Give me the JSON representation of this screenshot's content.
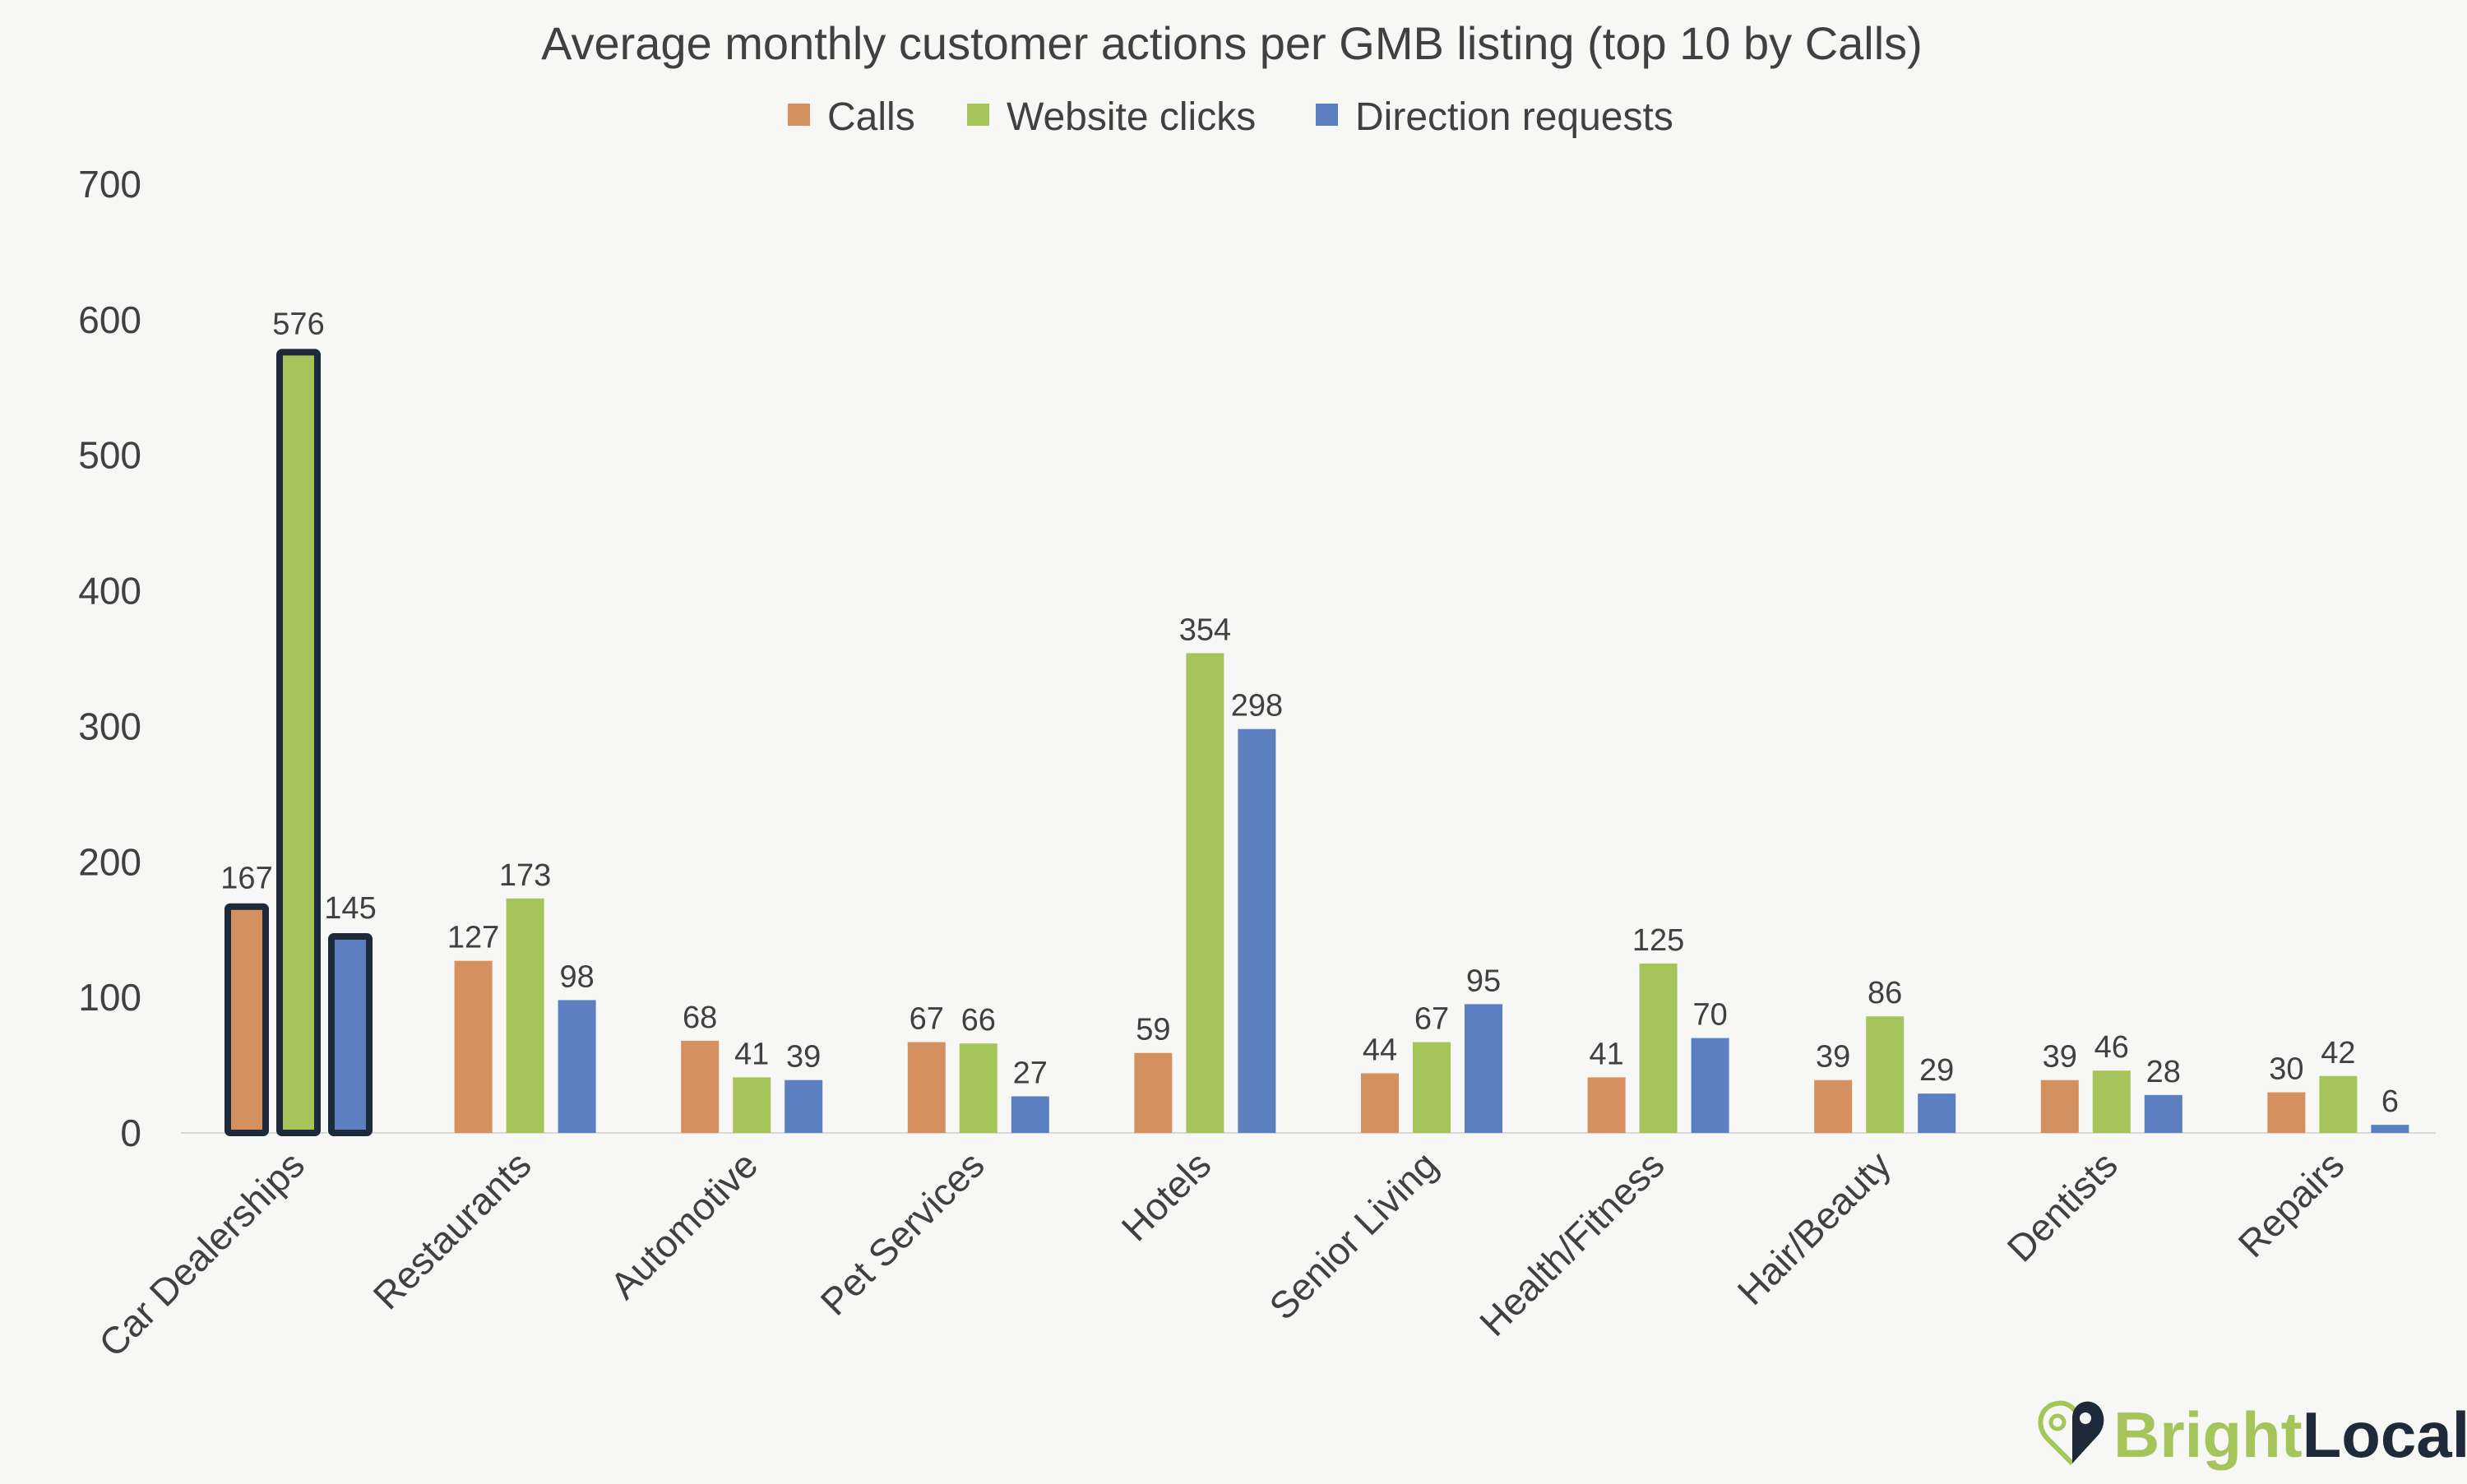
{
  "chart_data": {
    "type": "bar",
    "title": "Average monthly customer actions per GMB listing (top 10 by Calls)",
    "xlabel": "",
    "ylabel": "",
    "ylim": [
      0,
      700
    ],
    "yticks": [
      0,
      100,
      200,
      300,
      400,
      500,
      600,
      700
    ],
    "grid": false,
    "legend_position": "top",
    "categories": [
      "Car Dealerships",
      "Restaurants",
      "Automotive",
      "Pet Services",
      "Hotels",
      "Senior Living",
      "Health/Fitness",
      "Hair/Beauty",
      "Dentists",
      "Repairs"
    ],
    "highlighted_category": "Car Dealerships",
    "series": [
      {
        "name": "Calls",
        "color": "#d4915f",
        "values": [
          167,
          127,
          68,
          67,
          59,
          44,
          41,
          39,
          39,
          30
        ]
      },
      {
        "name": "Website clicks",
        "color": "#a5c55a",
        "values": [
          576,
          173,
          41,
          66,
          354,
          67,
          125,
          86,
          46,
          42
        ]
      },
      {
        "name": "Direction requests",
        "color": "#5b7fc0",
        "values": [
          145,
          98,
          39,
          27,
          298,
          95,
          70,
          29,
          28,
          6
        ]
      }
    ]
  },
  "logo": {
    "part1": "Bright",
    "part2": "Local",
    "colors": {
      "green": "#a5c55a",
      "navy": "#1e2a3a"
    }
  }
}
